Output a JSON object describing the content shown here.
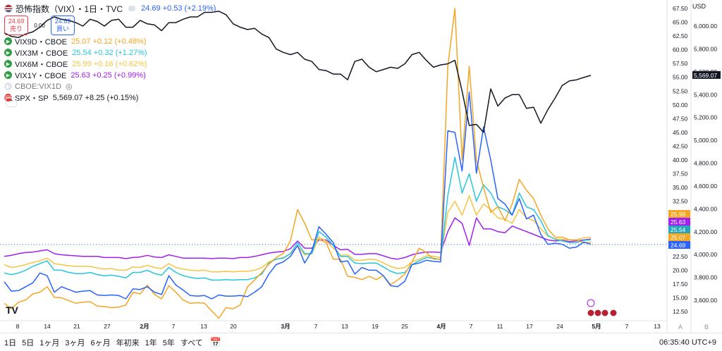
{
  "header": {
    "title": "恐怖指数（VIX）・1日・TVC",
    "quote": "24.69 +0.53 (+2.19%)",
    "sell_price": "24.69",
    "sell_label": "売り",
    "spread": "0.00",
    "buy_price": "24.69",
    "buy_label": "買い"
  },
  "legend": [
    {
      "name": "VIX9D・CBOE",
      "quote": "25.07 +0.12 (+0.48%)",
      "color": "#f5a623"
    },
    {
      "name": "VIX3M・CBOE",
      "quote": "25.54 +0.32 (+1.27%)",
      "color": "#26c6da"
    },
    {
      "name": "VIX6M・CBOE",
      "quote": "25.99 +0.16 (+0.62%)",
      "color": "#f5c542"
    },
    {
      "name": "VIX1Y・CBOE",
      "quote": "25.63 +0.25 (+0.99%)",
      "color": "#a020f0"
    },
    {
      "name": "CBOE:VIX1D",
      "quote": "",
      "color": "#b2b5be"
    },
    {
      "name": "SPX・SP",
      "quote": "5,569.07 +8.25 (+0.15%)",
      "color": "#131722"
    }
  ],
  "currency": "USD",
  "bottom_bar": {
    "ranges": [
      "1日",
      "5日",
      "1ヶ月",
      "3ヶ月",
      "6ヶ月",
      "年初来",
      "1年",
      "5年",
      "すべて"
    ],
    "time": "06:35:40 UTC+9"
  },
  "axis_scale_labels": {
    "auto": "A",
    "log": "B"
  },
  "chart_data": {
    "type": "line",
    "xlabel": "",
    "ylabel": "",
    "x_ticks": [
      "8",
      "14",
      "21",
      "27",
      "2月",
      "7",
      "13",
      "20",
      "3月",
      "7",
      "13",
      "19",
      "25",
      "4月",
      "7",
      "11",
      "17",
      "24",
      "5月",
      "7",
      "13"
    ],
    "left_axis": {
      "ylim": [
        10,
        69
      ],
      "ticks": [
        12.5,
        15,
        17.5,
        20,
        22.5,
        25,
        27.5,
        30,
        32.5,
        35,
        37.5,
        40,
        42.5,
        45,
        47.5,
        50,
        52.5,
        55,
        57.5,
        60,
        62.5,
        65,
        67.5
      ]
    },
    "right_axis": {
      "ylim": [
        3450,
        6300
      ],
      "ticks": [
        "3,600.00",
        "3,800.00",
        "4,000.00",
        "4,200.00",
        "4,400.00",
        "4,600.00",
        "4,800.00",
        "5,000.00",
        "5,200.00",
        "5,400.00",
        "5,600.00",
        "5,800.00",
        "6,000.00"
      ]
    },
    "last_values": {
      "VIX6M": "25.99",
      "VIX1Y": "25.63",
      "VIX3M": "25.54",
      "VIX9D": "25.07",
      "VIX": "24.69",
      "SPX": "5,569.07"
    },
    "series": [
      {
        "name": "SPX",
        "axis": "right",
        "color": "#131722",
        "values": [
          5940,
          5910,
          5900,
          5930,
          5950,
          5990,
          6050,
          6080,
          6060,
          6050,
          6030,
          6000,
          6060,
          6040,
          6000,
          6050,
          6060,
          5990,
          5990,
          6050,
          6020,
          6010,
          5960,
          6030,
          6030,
          6060,
          6080,
          6080,
          6120,
          6120,
          6130,
          6100,
          6020,
          5990,
          5970,
          5980,
          5930,
          5900,
          5800,
          5770,
          5750,
          5770,
          5710,
          5690,
          5620,
          5610,
          5580,
          5580,
          5530,
          5690,
          5710,
          5640,
          5600,
          5620,
          5640,
          5630,
          5670,
          5750,
          5770,
          5700,
          5640,
          5660,
          5670,
          5700,
          5430,
          5130,
          5140,
          5070,
          5450,
          5300,
          5370,
          5400,
          5400,
          5280,
          5290,
          5150,
          5270,
          5370,
          5480,
          5520,
          5530,
          5550,
          5569
        ]
      },
      {
        "name": "VIX",
        "axis": "left",
        "color": "#2962ff",
        "values": [
          17.9,
          16.2,
          16.3,
          17.0,
          17.7,
          19.5,
          19.0,
          16.0,
          17.0,
          16.5,
          16.0,
          16.2,
          16.3,
          15.5,
          15.4,
          15.5,
          15.4,
          14.8,
          16.6,
          16.5,
          17.0,
          16.0,
          15.6,
          19.0,
          17.3,
          16.4,
          15.4,
          15.3,
          15.4,
          14.8,
          15.5,
          15.3,
          15.3,
          15.4,
          15.2,
          16.0,
          17.0,
          19.3,
          21.0,
          21.5,
          22.5,
          24.5,
          21.3,
          23.5,
          27.9,
          26.5,
          25.0,
          21.5,
          21.7,
          19.3,
          20.5,
          20.0,
          20.0,
          19.0,
          17.2,
          17.0,
          18.0,
          21.0,
          21.3,
          21.8,
          21.6,
          21.5,
          45.3,
          45.0,
          38.0,
          52.3,
          37.6,
          46.0,
          40.0,
          33.0,
          32.0,
          30.0,
          33.0,
          29.3,
          30.0,
          26.5,
          24.7,
          24.9,
          24.7,
          24.0,
          24.2,
          25.1,
          24.69
        ]
      },
      {
        "name": "VIX9D",
        "axis": "left",
        "color": "#f5a623",
        "values": [
          14.0,
          13.0,
          14.2,
          14.6,
          15.7,
          16.0,
          17.0,
          15.1,
          15.0,
          14.5,
          14.0,
          14.2,
          14.3,
          13.5,
          13.4,
          13.2,
          13.3,
          13.7,
          16.0,
          15.7,
          17.3,
          15.6,
          14.8,
          17.2,
          16.0,
          14.6,
          14.0,
          14.1,
          14.0,
          12.6,
          11.3,
          13.2,
          13.0,
          13.7,
          17.0,
          18.2,
          19.6,
          21.1,
          22.3,
          23.0,
          25.3,
          31.0,
          28.5,
          25.5,
          25.6,
          25.0,
          22.0,
          22.0,
          18.9,
          18.7,
          18.3,
          18.9,
          18.3,
          19.0,
          17.4,
          18.2,
          19.3,
          21.5,
          24.0,
          23.2,
          22.0,
          22.0,
          57.0,
          67.5,
          40.0,
          57.0,
          40.0,
          35.0,
          30.5,
          31.5,
          29.0,
          32.0,
          36.5,
          34.5,
          33.0,
          30.0,
          27.5,
          26.0,
          26.0,
          25.5,
          25.5,
          25.0,
          25.07
        ]
      },
      {
        "name": "VIX3M",
        "axis": "left",
        "color": "#26c6da",
        "values": [
          19.5,
          19.2,
          19.5,
          20.0,
          20.7,
          21.2,
          21.7,
          20.0,
          20.0,
          19.6,
          19.4,
          19.4,
          19.6,
          19.2,
          19.0,
          19.1,
          18.9,
          18.6,
          19.6,
          19.6,
          20.0,
          19.4,
          19.1,
          20.5,
          19.6,
          19.0,
          18.7,
          18.5,
          18.6,
          18.2,
          18.2,
          18.3,
          18.2,
          18.3,
          18.3,
          18.6,
          19.3,
          21.3,
          22.0,
          22.2,
          23.0,
          25.0,
          23.0,
          23.0,
          27.0,
          26.0,
          24.5,
          22.5,
          22.5,
          21.3,
          21.2,
          21.3,
          21.3,
          20.6,
          19.8,
          19.4,
          19.6,
          21.0,
          21.7,
          22.3,
          22.2,
          21.9,
          33.5,
          40.5,
          34.0,
          37.5,
          32.5,
          35.5,
          34.0,
          31.5,
          31.0,
          30.0,
          34.0,
          31.5,
          31.0,
          29.0,
          26.3,
          25.6,
          25.3,
          25.0,
          25.0,
          25.4,
          25.54
        ]
      },
      {
        "name": "VIX6M",
        "axis": "left",
        "color": "#f5c542",
        "values": [
          21.0,
          20.5,
          20.7,
          21.0,
          21.4,
          21.7,
          22.2,
          21.2,
          21.0,
          20.8,
          20.7,
          20.7,
          20.7,
          20.4,
          20.2,
          20.3,
          20.0,
          20.0,
          20.6,
          20.5,
          20.9,
          20.5,
          20.3,
          21.2,
          20.5,
          20.2,
          20.0,
          19.9,
          20.0,
          19.7,
          19.7,
          19.8,
          19.7,
          19.8,
          19.8,
          20.0,
          20.5,
          21.5,
          22.0,
          22.3,
          23.0,
          24.4,
          22.8,
          23.0,
          26.0,
          25.3,
          24.0,
          22.7,
          22.8,
          21.8,
          21.8,
          22.0,
          21.9,
          21.3,
          20.7,
          20.3,
          20.5,
          21.5,
          22.0,
          22.6,
          22.5,
          22.3,
          30.5,
          32.5,
          30.0,
          33.5,
          30.0,
          32.0,
          31.0,
          29.5,
          29.2,
          28.5,
          31.0,
          29.5,
          29.0,
          27.5,
          26.2,
          25.7,
          25.6,
          25.5,
          25.5,
          25.9,
          25.99
        ]
      },
      {
        "name": "VIX1Y",
        "axis": "left",
        "color": "#a020f0",
        "values": [
          22.5,
          22.7,
          23.0,
          23.2,
          23.3,
          23.5,
          23.7,
          23.0,
          22.8,
          22.7,
          22.6,
          22.5,
          22.5,
          22.5,
          22.3,
          22.3,
          22.3,
          22.1,
          22.3,
          22.4,
          22.7,
          22.4,
          22.3,
          22.8,
          22.5,
          22.2,
          22.2,
          22.2,
          22.2,
          22.1,
          22.2,
          22.2,
          22.1,
          22.3,
          22.3,
          22.5,
          22.8,
          23.1,
          23.3,
          23.4,
          23.9,
          25.3,
          24.0,
          24.0,
          25.5,
          25.5,
          24.5,
          23.7,
          23.8,
          22.9,
          22.9,
          23.0,
          23.0,
          22.6,
          22.2,
          22.0,
          22.3,
          22.8,
          23.1,
          23.3,
          23.3,
          23.2,
          27.0,
          29.5,
          28.5,
          24.5,
          29.5,
          27.5,
          27.5,
          27.0,
          26.8,
          28.0,
          27.5,
          27.0,
          26.5,
          26.0,
          25.5,
          25.3,
          25.4,
          25.2,
          25.3,
          25.5,
          25.63
        ]
      }
    ]
  }
}
